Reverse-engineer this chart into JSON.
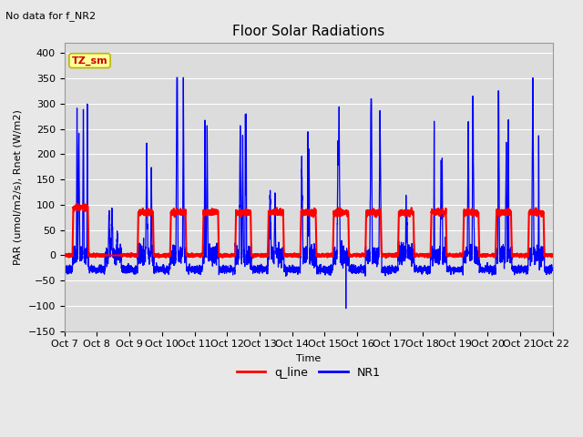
{
  "title": "Floor Solar Radiations",
  "subtitle": "No data for f_NR2",
  "xlabel": "Time",
  "ylabel": "PAR (umol/m2/s), Rnet (W/m2)",
  "ylim": [
    -150,
    420
  ],
  "yticks": [
    -150,
    -100,
    -50,
    0,
    50,
    100,
    150,
    200,
    250,
    300,
    350,
    400
  ],
  "xtick_labels": [
    "Oct 7",
    "Oct 8",
    "Oct 9",
    "Oct 10",
    "Oct 11",
    "Oct 12",
    "Oct 13",
    "Oct 14",
    "Oct 15",
    "Oct 16",
    "Oct 17",
    "Oct 18",
    "Oct 19",
    "Oct 20",
    "Oct 21",
    "Oct 22"
  ],
  "legend_entries": [
    "q_line",
    "NR1"
  ],
  "legend_colors": [
    "#ff0000",
    "#0000ff"
  ],
  "box_label": "TZ_sm",
  "box_facecolor": "#ffff99",
  "box_edgecolor": "#b8b800",
  "fig_facecolor": "#e8e8e8",
  "plot_facecolor": "#dcdcdc",
  "grid_color": "#ffffff",
  "title_fontsize": 11,
  "label_fontsize": 8,
  "tick_fontsize": 8,
  "linewidth_nr1": 0.9,
  "linewidth_q": 1.5
}
